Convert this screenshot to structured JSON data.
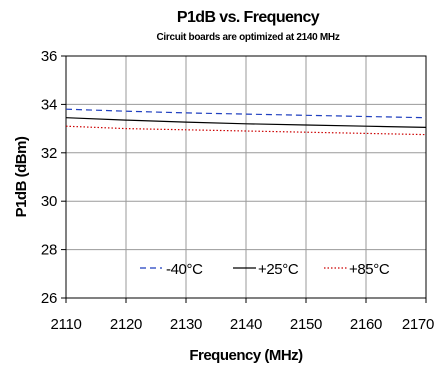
{
  "chart_data": {
    "type": "line",
    "title": "P1dB vs. Frequency",
    "subtitle": "Circuit boards are optimized at 2140 MHz",
    "xlabel": "Frequency (MHz)",
    "ylabel": "P1dB (dBm)",
    "xlim": [
      2110,
      2170
    ],
    "ylim": [
      26,
      36
    ],
    "xticks": [
      "2110",
      "2120",
      "2130",
      "2140",
      "2150",
      "2160",
      "2170"
    ],
    "yticks": [
      "26",
      "28",
      "30",
      "32",
      "34",
      "36"
    ],
    "grid": true,
    "legend_position": "inside-bottom",
    "x": [
      2110,
      2120,
      2130,
      2140,
      2150,
      2160,
      2170
    ],
    "series": [
      {
        "name": "-40°C",
        "values": [
          33.8,
          33.72,
          33.65,
          33.6,
          33.55,
          33.5,
          33.45
        ],
        "color": "#1f3fbf",
        "dash": "dashed"
      },
      {
        "name": "+25°C",
        "values": [
          33.45,
          33.35,
          33.27,
          33.2,
          33.15,
          33.1,
          33.05
        ],
        "color": "#000000",
        "dash": "solid"
      },
      {
        "name": "+85°C",
        "values": [
          33.1,
          33.0,
          32.95,
          32.9,
          32.85,
          32.8,
          32.75
        ],
        "color": "#cc0000",
        "dash": "dotted"
      }
    ]
  }
}
